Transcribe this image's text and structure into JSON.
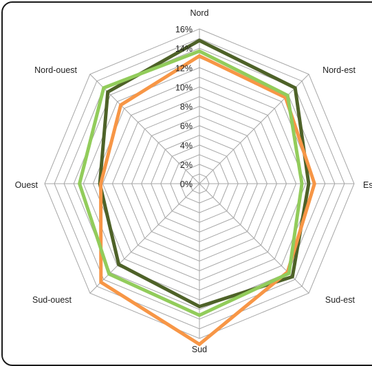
{
  "chart_data": {
    "type": "radar",
    "categories": [
      "Nord",
      "Nord-est",
      "Est",
      "Sud-est",
      "Sud",
      "Sud-ouest",
      "Ouest",
      "Nord-ouest"
    ],
    "radial_ticks": [
      "0%",
      "2%",
      "4%",
      "6%",
      "8%",
      "10%",
      "12%",
      "14%",
      "16%"
    ],
    "rmax": 16,
    "grid_levels": 16,
    "grid": true,
    "legend": "none",
    "series": [
      {
        "color": "#4e6228",
        "values": [
          14.8,
          14.0,
          11.3,
          13.6,
          12.7,
          11.8,
          10.3,
          13.4
        ]
      },
      {
        "color": "#f79646",
        "values": [
          13.2,
          12.6,
          11.9,
          12.9,
          16.6,
          14.4,
          10.2,
          11.5
        ]
      },
      {
        "color": "#92cc5b",
        "values": [
          13.7,
          12.9,
          10.6,
          13.1,
          13.6,
          13.2,
          12.4,
          14.0
        ]
      }
    ]
  }
}
